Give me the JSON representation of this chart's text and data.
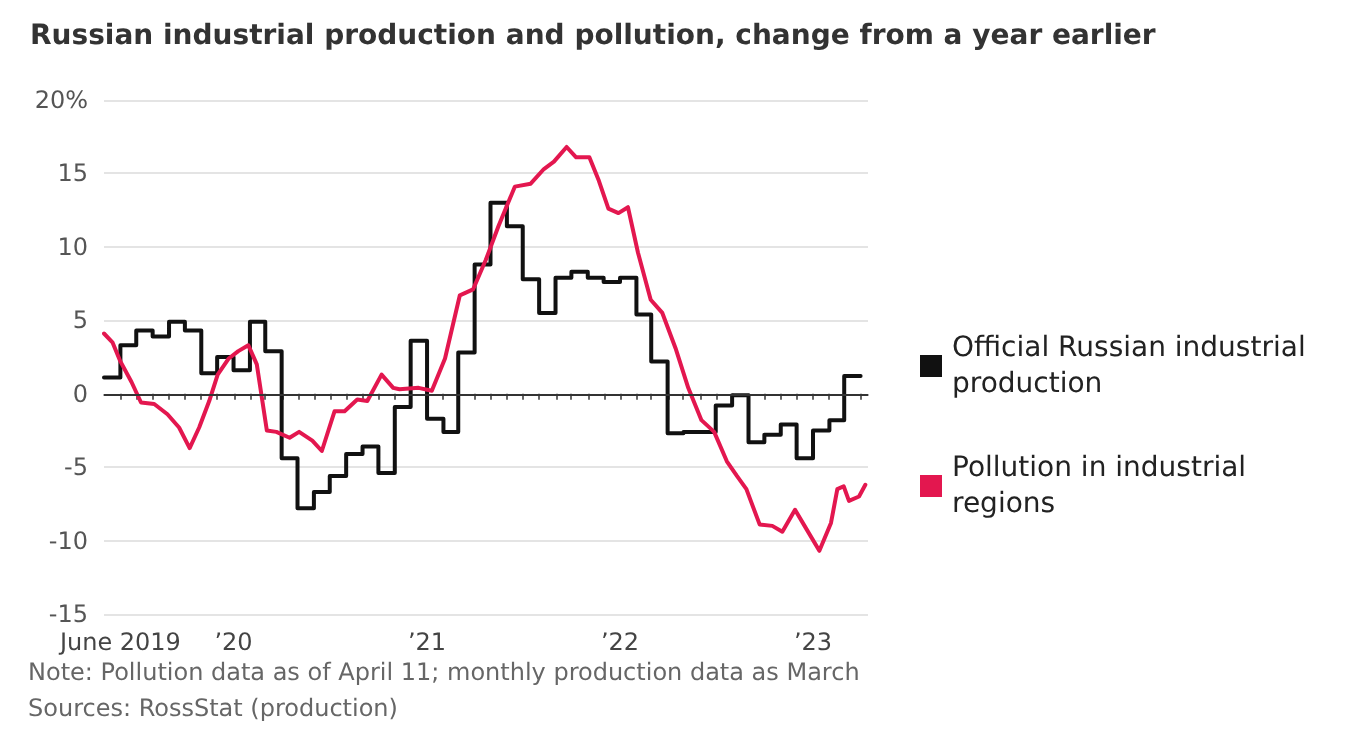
{
  "chart_data": {
    "type": "line",
    "title": "Russian industrial production and pollution, change from a year earlier",
    "annotations": [
      "Note: Pollution data as of April 11; monthly production data as March",
      "Sources: RossStat (production)"
    ],
    "series": [
      {
        "name": "Official Russian industrial production",
        "type": "step",
        "color": "#111111",
        "x": [
          "2019-05",
          "2019-06",
          "2019-07",
          "2019-08",
          "2019-09",
          "2019-10",
          "2019-11",
          "2019-12",
          "2020-01",
          "2020-02",
          "2020-03",
          "2020-04",
          "2020-05",
          "2020-06",
          "2020-07",
          "2020-08",
          "2020-09",
          "2020-10",
          "2020-11",
          "2020-12",
          "2021-01",
          "2021-02",
          "2021-03",
          "2021-04",
          "2021-05",
          "2021-06",
          "2021-07",
          "2021-08",
          "2021-09",
          "2021-10",
          "2021-11",
          "2021-12",
          "2022-01",
          "2022-02",
          "2022-03",
          "2022-04",
          "2022-05",
          "2022-06",
          "2022-07",
          "2022-08",
          "2022-09",
          "2022-10",
          "2022-11",
          "2022-12",
          "2023-01",
          "2023-02",
          "2023-03",
          "2023-04"
        ],
        "values": [
          1.1,
          3.3,
          4.3,
          3.9,
          4.9,
          4.3,
          1.4,
          2.5,
          1.6,
          4.9,
          2.9,
          -4.4,
          -7.8,
          -6.7,
          -5.6,
          -4.1,
          -3.6,
          -5.4,
          -0.9,
          3.6,
          -1.7,
          -2.6,
          2.8,
          8.8,
          13.0,
          11.4,
          7.8,
          5.5,
          7.9,
          8.3,
          7.9,
          7.6,
          7.9,
          5.4,
          2.2,
          -2.7,
          -2.6,
          -2.6,
          -0.8,
          -0.1,
          -3.3,
          -2.8,
          -2.1,
          -4.4,
          -2.5,
          -1.8,
          1.2,
          1.2
        ]
      },
      {
        "name": "Pollution in industrial regions",
        "color": "#e3174f",
        "x": [
          "2019-05-01",
          "2019-05-17",
          "2019-06-01",
          "2019-06-22",
          "2019-07-10",
          "2019-08-04",
          "2019-08-29",
          "2019-09-20",
          "2019-10-10",
          "2019-10-28",
          "2019-11-16",
          "2019-12-02",
          "2019-12-23",
          "2020-01-10",
          "2020-01-29",
          "2020-02-14",
          "2020-03-04",
          "2020-03-22",
          "2020-04-16",
          "2020-05-04",
          "2020-05-29",
          "2020-06-16",
          "2020-07-10",
          "2020-07-29",
          "2020-08-22",
          "2020-09-10",
          "2020-10-07",
          "2020-10-29",
          "2020-11-10",
          "2020-12-16",
          "2021-01-10",
          "2021-02-04",
          "2021-03-04",
          "2021-03-29",
          "2021-04-22",
          "2021-05-16",
          "2021-06-16",
          "2021-07-16",
          "2021-08-10",
          "2021-08-29",
          "2021-09-22",
          "2021-10-10",
          "2021-11-04",
          "2021-11-22",
          "2021-12-10",
          "2021-12-29",
          "2022-01-16",
          "2022-02-04",
          "2022-02-28",
          "2022-03-22",
          "2022-04-16",
          "2022-05-10",
          "2022-06-04",
          "2022-06-28",
          "2022-07-22",
          "2022-08-10",
          "2022-08-28",
          "2022-09-22",
          "2022-10-16",
          "2022-11-04",
          "2022-11-28",
          "2022-12-16",
          "2023-01-13",
          "2023-02-04",
          "2023-02-16",
          "2023-02-28",
          "2023-03-10",
          "2023-03-29",
          "2023-04-10"
        ],
        "values": [
          4.1,
          3.5,
          2.2,
          0.8,
          -0.6,
          -0.7,
          -1.4,
          -2.3,
          -3.7,
          -2.3,
          -0.5,
          1.3,
          2.4,
          2.9,
          3.3,
          2.0,
          -2.5,
          -2.6,
          -3.0,
          -2.6,
          -3.2,
          -3.9,
          -1.2,
          -1.2,
          -0.4,
          -0.5,
          1.3,
          0.4,
          0.3,
          0.4,
          0.2,
          2.4,
          6.7,
          7.1,
          9.1,
          11.4,
          14.1,
          14.3,
          15.3,
          15.8,
          16.8,
          16.1,
          16.1,
          14.5,
          12.6,
          12.3,
          12.7,
          9.6,
          6.4,
          5.5,
          3.1,
          0.4,
          -1.8,
          -2.6,
          -4.6,
          -5.6,
          -6.5,
          -8.9,
          -9.0,
          -9.4,
          -7.9,
          -9.0,
          -10.7,
          -8.8,
          -6.5,
          -6.3,
          -7.3,
          -7.0,
          -6.2
        ]
      }
    ],
    "xlim": [
      "2019-05-01",
      "2023-04-15"
    ],
    "xticks": [
      {
        "value": "2019-06",
        "label": "June 2019"
      },
      {
        "value": "2019-07",
        "label": null
      },
      {
        "value": "2019-08",
        "label": null
      },
      {
        "value": "2019-09",
        "label": null
      },
      {
        "value": "2019-10",
        "label": null
      },
      {
        "value": "2019-11",
        "label": null
      },
      {
        "value": "2019-12",
        "label": null
      },
      {
        "value": "2020-01",
        "label": "’20"
      },
      {
        "value": "2020-02",
        "label": null
      },
      {
        "value": "2020-03",
        "label": null
      },
      {
        "value": "2020-04",
        "label": null
      },
      {
        "value": "2020-05",
        "label": null
      },
      {
        "value": "2020-06",
        "label": null
      },
      {
        "value": "2020-07",
        "label": null
      },
      {
        "value": "2020-08",
        "label": null
      },
      {
        "value": "2020-09",
        "label": null
      },
      {
        "value": "2020-10",
        "label": null
      },
      {
        "value": "2020-11",
        "label": null
      },
      {
        "value": "2020-12",
        "label": null
      },
      {
        "value": "2021-01",
        "label": "’21"
      },
      {
        "value": "2021-02",
        "label": null
      },
      {
        "value": "2021-03",
        "label": null
      },
      {
        "value": "2021-04",
        "label": null
      },
      {
        "value": "2021-05",
        "label": null
      },
      {
        "value": "2021-06",
        "label": null
      },
      {
        "value": "2021-07",
        "label": null
      },
      {
        "value": "2021-08",
        "label": null
      },
      {
        "value": "2021-09",
        "label": null
      },
      {
        "value": "2021-10",
        "label": null
      },
      {
        "value": "2021-11",
        "label": null
      },
      {
        "value": "2021-12",
        "label": null
      },
      {
        "value": "2022-01",
        "label": "’22"
      },
      {
        "value": "2022-02",
        "label": null
      },
      {
        "value": "2022-03",
        "label": null
      },
      {
        "value": "2022-04",
        "label": null
      },
      {
        "value": "2022-05",
        "label": null
      },
      {
        "value": "2022-06",
        "label": null
      },
      {
        "value": "2022-07",
        "label": null
      },
      {
        "value": "2022-08",
        "label": null
      },
      {
        "value": "2022-09",
        "label": null
      },
      {
        "value": "2022-10",
        "label": null
      },
      {
        "value": "2022-11",
        "label": null
      },
      {
        "value": "2022-12",
        "label": null
      },
      {
        "value": "2023-01",
        "label": "’23"
      },
      {
        "value": "2023-02",
        "label": null
      },
      {
        "value": "2023-03",
        "label": null
      },
      {
        "value": "2023-04",
        "label": null
      }
    ],
    "ylim": [
      -15,
      20
    ],
    "yticks": [
      -15,
      -10,
      -5,
      0,
      5,
      10,
      15,
      {
        "value": 20,
        "label": "20%"
      }
    ],
    "ref_lines": [
      {
        "axis": "y",
        "value": 0,
        "color": "#333333"
      }
    ],
    "grid": "y",
    "legend": "right",
    "marker": "none",
    "line_style": "solid"
  }
}
